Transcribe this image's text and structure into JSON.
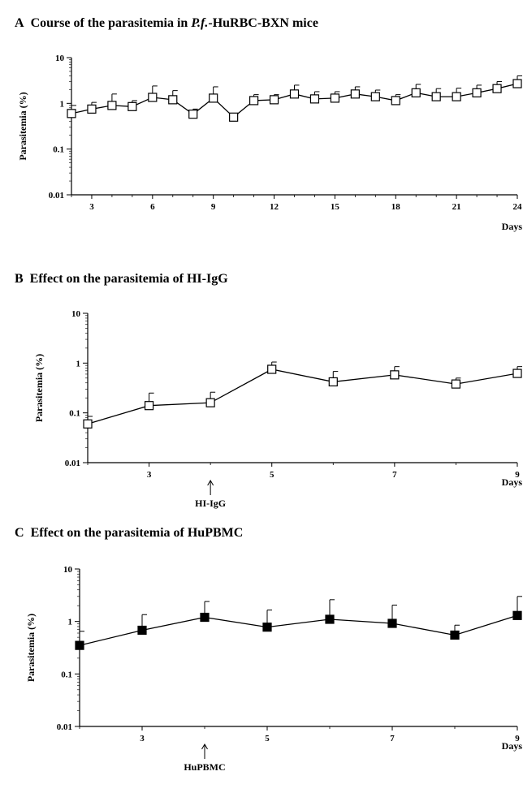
{
  "panels": [
    {
      "letter": "A",
      "title_pre": "Course of the parasitemia in ",
      "title_ital": "P.f.",
      "title_post": "-HuRBC-BXN mice"
    },
    {
      "letter": "B",
      "title_pre": "Effect on the parasitemia of HI-IgG",
      "title_ital": "",
      "title_post": ""
    },
    {
      "letter": "C",
      "title_pre": "Effect on the parasitemia of HuPBMC",
      "title_ital": "",
      "title_post": ""
    }
  ],
  "chart_data": [
    {
      "type": "line",
      "title": "A Course of the parasitemia in P.f.-HuRBC-BXN mice",
      "xlabel": "Days",
      "ylabel": "Parasitemia (%)",
      "yscale": "log",
      "ylim": [
        0.01,
        10
      ],
      "yticks": [
        0.01,
        0.1,
        1,
        10
      ],
      "yticklabels": [
        "0.01",
        "0.1",
        "1",
        "10"
      ],
      "xlim": [
        2,
        24
      ],
      "xticks": [
        3,
        6,
        9,
        12,
        15,
        18,
        21,
        24
      ],
      "marker": "open-square",
      "series": [
        {
          "x": [
            2,
            3,
            4,
            5,
            6,
            7,
            8,
            9,
            10,
            11,
            12,
            13,
            14,
            15,
            16,
            17,
            18,
            19,
            20,
            21,
            22,
            23,
            24
          ],
          "values": [
            0.6,
            0.75,
            0.9,
            0.85,
            1.35,
            1.2,
            0.58,
            1.3,
            0.5,
            1.15,
            1.2,
            1.6,
            1.25,
            1.3,
            1.6,
            1.4,
            1.15,
            1.7,
            1.4,
            1.4,
            1.7,
            2.1,
            2.7
          ],
          "error_upper": [
            0.9,
            1.05,
            1.6,
            1.15,
            2.4,
            1.9,
            0.75,
            2.3,
            0.6,
            1.55,
            1.55,
            2.5,
            1.8,
            1.8,
            2.3,
            1.95,
            1.55,
            2.6,
            2.1,
            2.15,
            2.5,
            3.0,
            4.0
          ]
        }
      ],
      "annotations": []
    },
    {
      "type": "line",
      "title": "B Effect on the parasitemia of HI-IgG",
      "xlabel": "Days",
      "ylabel": "Parasitemia (%)",
      "yscale": "log",
      "ylim": [
        0.01,
        10
      ],
      "yticks": [
        0.01,
        0.1,
        1,
        10
      ],
      "yticklabels": [
        "0.01",
        "0.1",
        "1",
        "10"
      ],
      "xlim": [
        2,
        9
      ],
      "xticks": [
        3,
        5,
        7,
        9
      ],
      "marker": "open-square",
      "series": [
        {
          "x": [
            2,
            3,
            4,
            5,
            6,
            7,
            8,
            9
          ],
          "values": [
            0.06,
            0.14,
            0.16,
            0.75,
            0.42,
            0.58,
            0.38,
            0.62
          ],
          "error_upper": [
            0.085,
            0.25,
            0.26,
            1.05,
            0.68,
            0.85,
            0.5,
            0.85
          ]
        }
      ],
      "annotations": [
        {
          "x": 4,
          "text": "HI-IgG"
        }
      ]
    },
    {
      "type": "line",
      "title": "C Effect on the parasitemia of HuPBMC",
      "xlabel": "Days",
      "ylabel": "Parasitemia (%)",
      "yscale": "log",
      "ylim": [
        0.01,
        10
      ],
      "yticks": [
        0.01,
        0.1,
        1,
        10
      ],
      "yticklabels": [
        "0.01",
        "0.1",
        "1",
        "10"
      ],
      "xlim": [
        2,
        9
      ],
      "xticks": [
        3,
        5,
        7,
        9
      ],
      "marker": "filled-square",
      "series": [
        {
          "x": [
            2,
            3,
            4,
            5,
            6,
            7,
            8,
            9
          ],
          "values": [
            0.35,
            0.68,
            1.2,
            0.78,
            1.1,
            0.92,
            0.55,
            1.3
          ],
          "error_upper": [
            0.65,
            1.35,
            2.4,
            1.65,
            2.6,
            2.05,
            0.85,
            3.0
          ]
        }
      ],
      "annotations": [
        {
          "x": 4,
          "text": "HuPBMC"
        }
      ]
    }
  ]
}
